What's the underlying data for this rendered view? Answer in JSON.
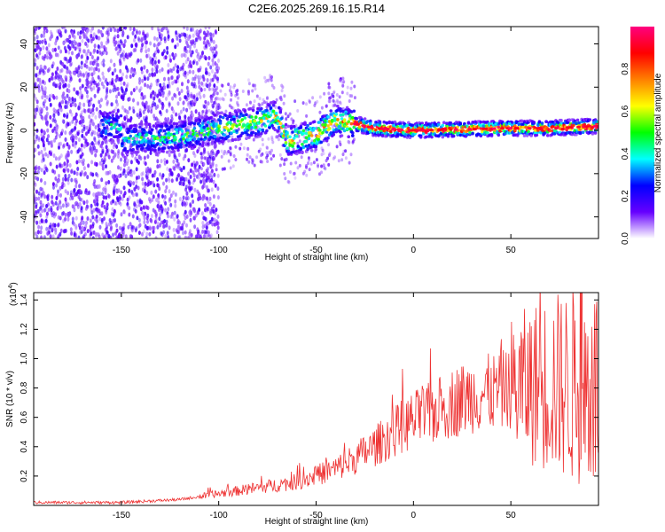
{
  "title": "C2E6.2025.269.16.15.R14",
  "spectrogram": {
    "type": "heatmap",
    "xlabel": "Height of straight line (km)",
    "ylabel": "Frequency (Hz)",
    "xlim": [
      -195,
      95
    ],
    "ylim": [
      -50,
      48
    ],
    "xticks": [
      -150,
      -100,
      -50,
      0,
      50
    ],
    "yticks": [
      -40,
      -20,
      0,
      20,
      40
    ],
    "colorbar": {
      "label": "Normalized spectral amplitude",
      "range": [
        0,
        1
      ],
      "ticks": [
        "0.0",
        "0.2",
        "0.4",
        "0.6",
        "0.8"
      ],
      "colors": [
        "#ffffff",
        "#6600ff",
        "#0000ff",
        "#00ffff",
        "#00ff00",
        "#ffff00",
        "#ff8000",
        "#ff0000",
        "#ff0080"
      ]
    },
    "ridge": [
      {
        "x": -150,
        "y": -4
      },
      {
        "x": -120,
        "y": -3
      },
      {
        "x": -100,
        "y": 1
      },
      {
        "x": -80,
        "y": 4
      },
      {
        "x": -70,
        "y": 7
      },
      {
        "x": -65,
        "y": -5
      },
      {
        "x": -50,
        "y": -2
      },
      {
        "x": -40,
        "y": 5
      },
      {
        "x": -30,
        "y": 3
      },
      {
        "x": -20,
        "y": 1
      },
      {
        "x": 0,
        "y": 0
      },
      {
        "x": 50,
        "y": 1
      },
      {
        "x": 70,
        "y": 1
      },
      {
        "x": 95,
        "y": 2
      }
    ]
  },
  "snr": {
    "type": "line",
    "xlabel": "Height of straight line (km)",
    "ylabel": "SNR (10 * v/v)",
    "yscale_label": "(x10",
    "yscale_exp": "4",
    "xlim": [
      -195,
      95
    ],
    "ylim": [
      0,
      1.45
    ],
    "xticks": [
      -150,
      -100,
      -50,
      0,
      50
    ],
    "yticks": [
      "0.2",
      "0.4",
      "0.6",
      "0.8",
      "1.0",
      "1.2",
      "1.4"
    ],
    "color": "#ee3333",
    "envelope": [
      {
        "x": -195,
        "y": 0.02
      },
      {
        "x": -150,
        "y": 0.02
      },
      {
        "x": -120,
        "y": 0.04
      },
      {
        "x": -100,
        "y": 0.08
      },
      {
        "x": -80,
        "y": 0.12
      },
      {
        "x": -60,
        "y": 0.16
      },
      {
        "x": -40,
        "y": 0.25
      },
      {
        "x": -30,
        "y": 0.32
      },
      {
        "x": -20,
        "y": 0.4
      },
      {
        "x": -10,
        "y": 0.5
      },
      {
        "x": 0,
        "y": 0.58
      },
      {
        "x": 10,
        "y": 0.63
      },
      {
        "x": 20,
        "y": 0.7
      },
      {
        "x": 30,
        "y": 0.75
      },
      {
        "x": 40,
        "y": 0.77
      },
      {
        "x": 50,
        "y": 0.8
      },
      {
        "x": 60,
        "y": 0.82
      },
      {
        "x": 70,
        "y": 0.83
      },
      {
        "x": 80,
        "y": 0.82
      },
      {
        "x": 95,
        "y": 0.8
      }
    ]
  }
}
